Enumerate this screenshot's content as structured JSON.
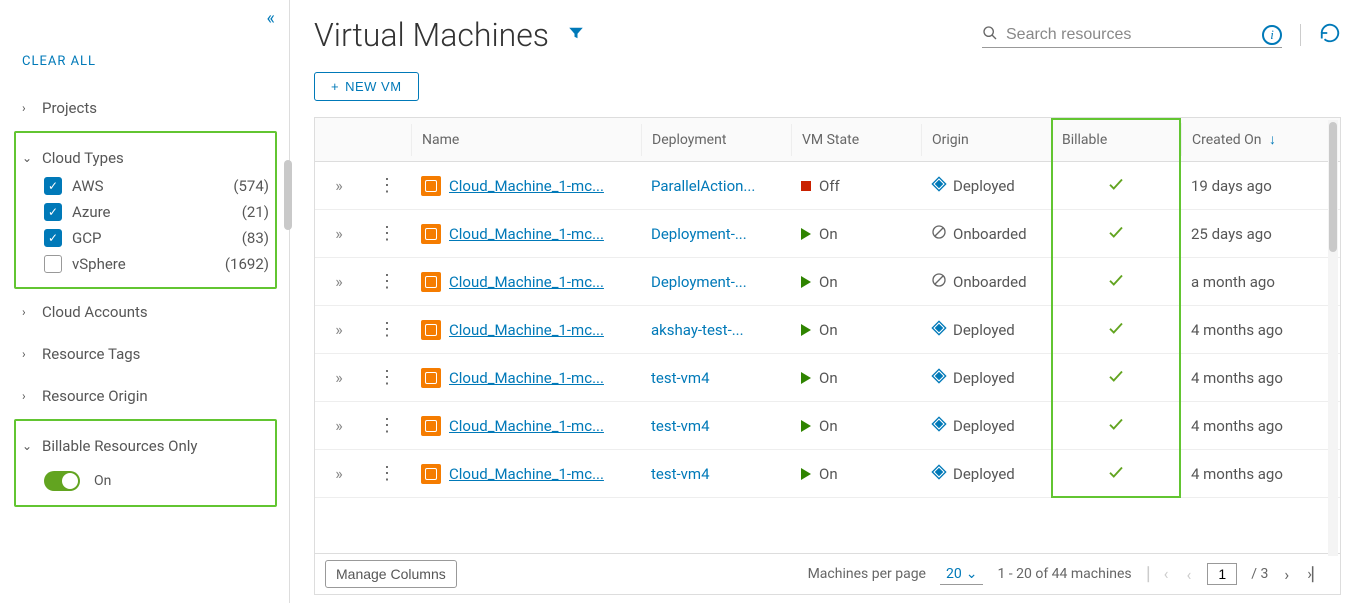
{
  "colors": {
    "link": "#0079b8",
    "highlight": "#62c531",
    "toggleOn": "#62a420",
    "vmIcon": "#f57c00",
    "offState": "#c92100",
    "onState": "#2f8400",
    "checkGreen": "#62a420",
    "border": "#dddddd",
    "text": "#565656"
  },
  "sidebar": {
    "clearAll": "CLEAR ALL",
    "groups": {
      "projects": {
        "label": "Projects",
        "expanded": false
      },
      "cloudTypes": {
        "label": "Cloud Types",
        "expanded": true,
        "items": [
          {
            "label": "AWS",
            "count": "(574)",
            "checked": true
          },
          {
            "label": "Azure",
            "count": "(21)",
            "checked": true
          },
          {
            "label": "GCP",
            "count": "(83)",
            "checked": true
          },
          {
            "label": "vSphere",
            "count": "(1692)",
            "checked": false
          }
        ]
      },
      "cloudAccounts": {
        "label": "Cloud Accounts",
        "expanded": false
      },
      "resourceTags": {
        "label": "Resource Tags",
        "expanded": false
      },
      "resourceOrigin": {
        "label": "Resource Origin",
        "expanded": false
      },
      "billable": {
        "label": "Billable Resources Only",
        "expanded": true,
        "toggleLabel": "On",
        "toggleOn": true
      }
    }
  },
  "header": {
    "title": "Virtual Machines",
    "searchPlaceholder": "Search resources",
    "newVmLabel": "NEW VM"
  },
  "table": {
    "columns": {
      "name": "Name",
      "deployment": "Deployment",
      "vmState": "VM State",
      "origin": "Origin",
      "billable": "Billable",
      "createdOn": "Created On"
    },
    "sortColumn": "createdOn",
    "sortDirection": "desc",
    "rows": [
      {
        "name": "Cloud_Machine_1-mc...",
        "deployment": "ParallelAction...",
        "state": "Off",
        "origin": "Deployed",
        "originKind": "deployed",
        "billable": true,
        "createdOn": "19 days ago"
      },
      {
        "name": "Cloud_Machine_1-mc...",
        "deployment": "Deployment-...",
        "state": "On",
        "origin": "Onboarded",
        "originKind": "onboarded",
        "billable": true,
        "createdOn": "25 days ago"
      },
      {
        "name": "Cloud_Machine_1-mc...",
        "deployment": "Deployment-...",
        "state": "On",
        "origin": "Onboarded",
        "originKind": "onboarded",
        "billable": true,
        "createdOn": "a month ago"
      },
      {
        "name": "Cloud_Machine_1-mc...",
        "deployment": "akshay-test-...",
        "state": "On",
        "origin": "Deployed",
        "originKind": "deployed",
        "billable": true,
        "createdOn": "4 months ago"
      },
      {
        "name": "Cloud_Machine_1-mc...",
        "deployment": "test-vm4",
        "state": "On",
        "origin": "Deployed",
        "originKind": "deployed",
        "billable": true,
        "createdOn": "4 months ago"
      },
      {
        "name": "Cloud_Machine_1-mc...",
        "deployment": "test-vm4",
        "state": "On",
        "origin": "Deployed",
        "originKind": "deployed",
        "billable": true,
        "createdOn": "4 months ago"
      },
      {
        "name": "Cloud_Machine_1-mc...",
        "deployment": "test-vm4",
        "state": "On",
        "origin": "Deployed",
        "originKind": "deployed",
        "billable": true,
        "createdOn": "4 months ago"
      }
    ]
  },
  "footer": {
    "manageColumns": "Manage Columns",
    "perPageLabel": "Machines per page",
    "perPageValue": "20",
    "rangeText": "1 - 20 of 44 machines",
    "currentPage": "1",
    "totalPagesLabel": "/ 3"
  }
}
